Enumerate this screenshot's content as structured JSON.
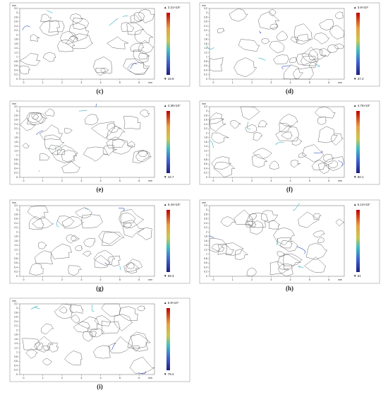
{
  "chart_data": [
    {
      "type": "contour",
      "label": "(c)",
      "max_label": "▲ 2.21×10⁷",
      "min_label": "▼ 19.9",
      "unit": "mm",
      "xlim": [
        -0.2,
        6.8
      ],
      "ylim": [
        0,
        3.2
      ],
      "xticks": [
        0,
        1,
        2,
        3,
        4,
        5,
        6
      ],
      "yticks": [
        0,
        0.2,
        0.4,
        0.6,
        0.8,
        1,
        1.2,
        1.4,
        1.6,
        1.8,
        2,
        2.2,
        2.4,
        2.6,
        2.8,
        3,
        3.2
      ]
    },
    {
      "type": "contour",
      "label": "(d)",
      "max_label": "▲ 3.6×10⁷",
      "min_label": "▼ 37.2",
      "unit": "mm",
      "xlim": [
        -0.2,
        6.8
      ],
      "ylim": [
        0,
        3.2
      ],
      "xticks": [
        0,
        1,
        2,
        3,
        4,
        5,
        6
      ],
      "yticks": [
        0,
        0.2,
        0.4,
        0.6,
        0.8,
        1,
        1.2,
        1.4,
        1.6,
        1.8,
        2,
        2.2,
        2.4,
        2.6,
        2.8,
        3,
        3.2
      ]
    },
    {
      "type": "contour",
      "label": "(e)",
      "max_label": "▲ 4.38×10⁷",
      "min_label": "▼ 44.7",
      "unit": "mm",
      "xlim": [
        -0.2,
        6.8
      ],
      "ylim": [
        0,
        3.2
      ],
      "xticks": [
        0,
        1,
        2,
        3,
        4,
        5,
        6
      ],
      "yticks": [
        0,
        0.2,
        0.4,
        0.6,
        0.8,
        1,
        1.2,
        1.4,
        1.6,
        1.8,
        2,
        2.2,
        2.4,
        2.6,
        2.8,
        3,
        3.2
      ]
    },
    {
      "type": "contour",
      "label": "(f)",
      "max_label": "▲ 4.76×10⁷",
      "min_label": "▼ 50.1",
      "unit": "mm",
      "xlim": [
        -0.2,
        6.8
      ],
      "ylim": [
        0,
        3.2
      ],
      "xticks": [
        0,
        1,
        2,
        3,
        4,
        5,
        6
      ],
      "yticks": [
        0,
        0.2,
        0.4,
        0.6,
        0.8,
        1,
        1.2,
        1.4,
        1.6,
        1.8,
        2,
        2.2,
        2.4,
        2.6,
        2.8,
        3,
        3.2
      ]
    },
    {
      "type": "contour",
      "label": "(g)",
      "max_label": "▲ 5.44×10⁷",
      "min_label": "▼ 59.3",
      "unit": "mm",
      "xlim": [
        -0.2,
        6.8
      ],
      "ylim": [
        0,
        3.2
      ],
      "xticks": [
        0,
        1,
        2,
        3,
        4,
        5,
        6
      ],
      "yticks": [
        0,
        0.2,
        0.4,
        0.6,
        0.8,
        1,
        1.2,
        1.4,
        1.6,
        1.8,
        2,
        2.2,
        2.4,
        2.6,
        2.8,
        3,
        3.2
      ]
    },
    {
      "type": "contour",
      "label": "(h)",
      "max_label": "▲ 6.13×10⁷",
      "min_label": "▼ 61",
      "unit": "mm",
      "xlim": [
        -0.2,
        6.8
      ],
      "ylim": [
        0,
        3.2
      ],
      "xticks": [
        0,
        1,
        2,
        3,
        4,
        5,
        6
      ],
      "yticks": [
        0,
        0.2,
        0.4,
        0.6,
        0.8,
        1,
        1.2,
        1.4,
        1.6,
        1.8,
        2,
        2.2,
        2.4,
        2.6,
        2.8,
        3,
        3.2
      ]
    },
    {
      "type": "contour",
      "label": "(i)",
      "max_label": "▲ 6.9×10⁷",
      "min_label": "▼ 79.4",
      "unit": "mm",
      "xlim": [
        -0.2,
        6.8
      ],
      "ylim": [
        0,
        3.2
      ],
      "xticks": [
        0,
        1,
        2,
        3,
        4,
        5,
        6
      ],
      "yticks": [
        0,
        0.2,
        0.4,
        0.6,
        0.8,
        1,
        1.2,
        1.4,
        1.6,
        1.8,
        2,
        2.2,
        2.4,
        2.6,
        2.8,
        3,
        3.2
      ]
    }
  ]
}
